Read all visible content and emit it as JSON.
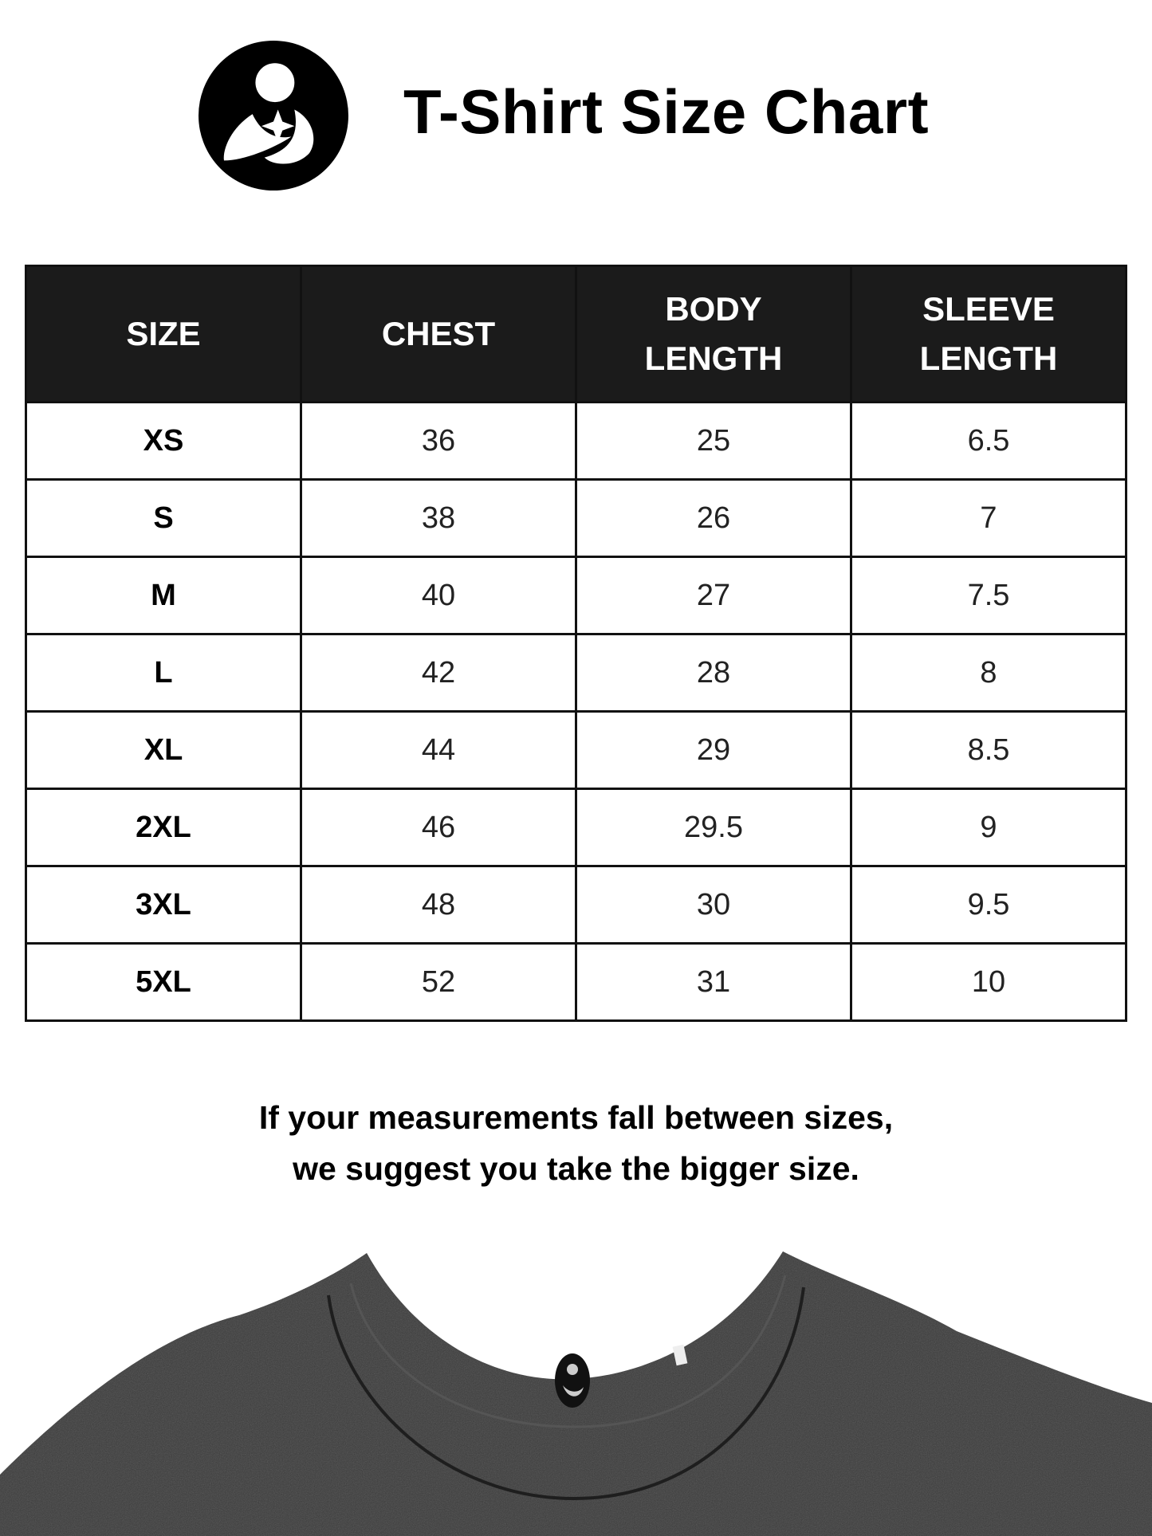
{
  "header": {
    "title": "T-Shirt Size Chart",
    "logo_icon": "mother-and-child-logo-icon"
  },
  "table": {
    "columns": [
      {
        "line1": "SIZE",
        "line2": ""
      },
      {
        "line1": "CHEST",
        "line2": ""
      },
      {
        "line1": "BODY",
        "line2": "LENGTH"
      },
      {
        "line1": "SLEEVE",
        "line2": "LENGTH"
      }
    ],
    "rows": [
      [
        "XS",
        "36",
        "25",
        "6.5"
      ],
      [
        "S",
        "38",
        "26",
        "7"
      ],
      [
        "M",
        "40",
        "27",
        "7.5"
      ],
      [
        "L",
        "42",
        "28",
        "8"
      ],
      [
        "XL",
        "44",
        "29",
        "8.5"
      ],
      [
        "2XL",
        "46",
        "29.5",
        "9"
      ],
      [
        "3XL",
        "48",
        "30",
        "9.5"
      ],
      [
        "5XL",
        "52",
        "31",
        "10"
      ]
    ]
  },
  "note": {
    "line1": "If your measurements fall between sizes,",
    "line2": "we suggest you take the bigger size."
  },
  "colors": {
    "header_bg": "#1b1b1b",
    "shirt": "#3a3a3a"
  }
}
